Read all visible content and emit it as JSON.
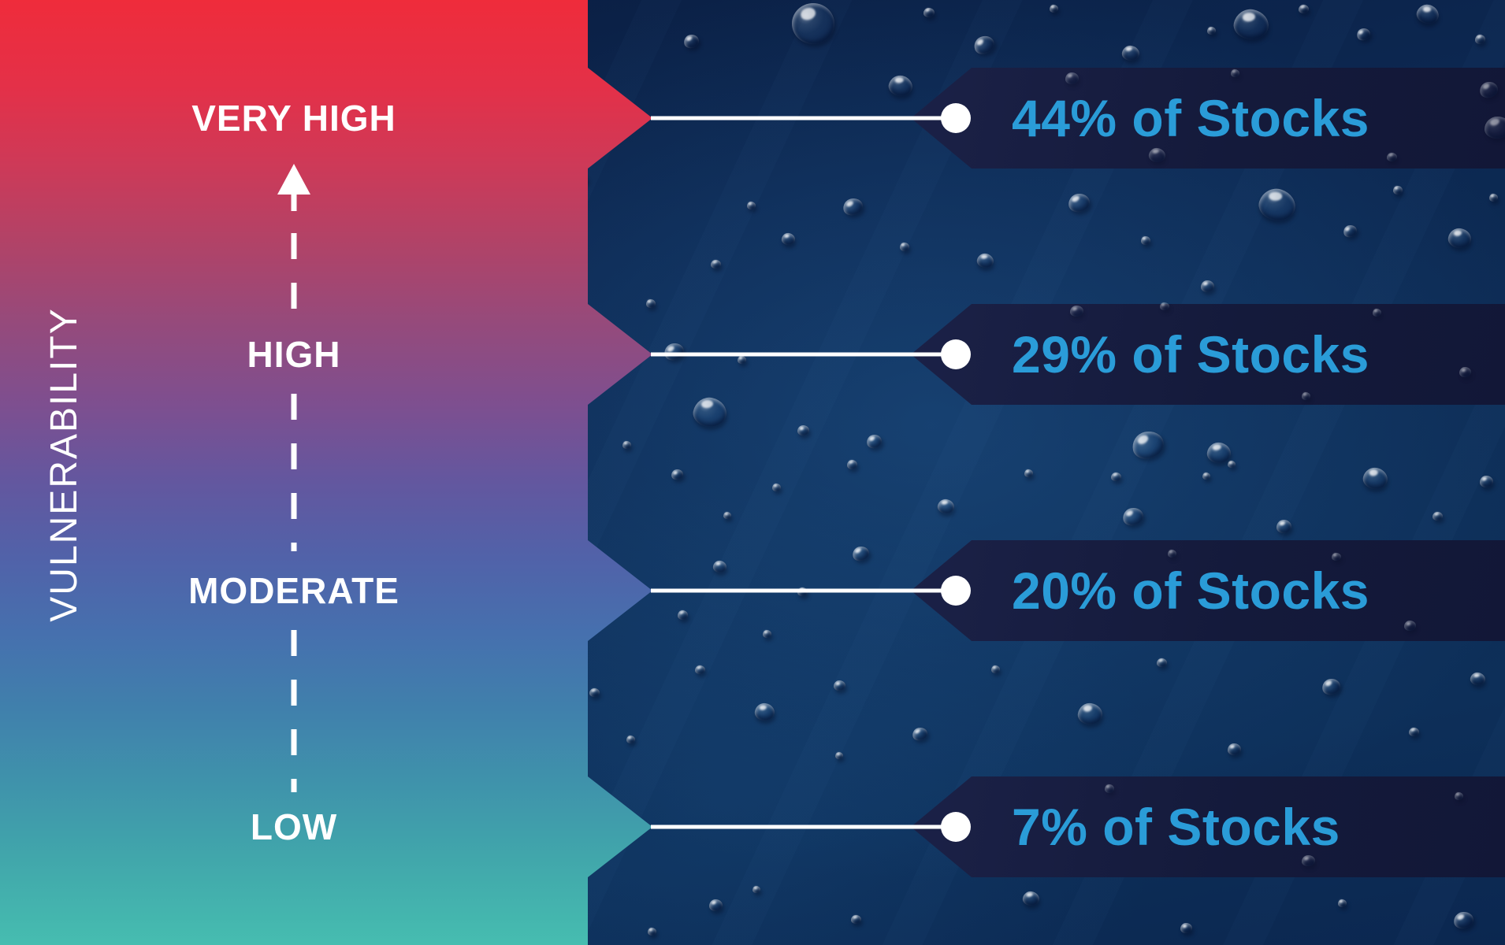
{
  "chart_data": {
    "type": "bar",
    "orientation": "horizontal-infographic-scale",
    "title": "",
    "xlabel": "",
    "ylabel": "VULNERABILITY",
    "categories": [
      "VERY HIGH",
      "HIGH",
      "MODERATE",
      "LOW"
    ],
    "values": [
      44,
      29,
      20,
      7
    ],
    "value_labels": [
      "44% of Stocks",
      "29% of Stocks",
      "20% of Stocks",
      "7% of Stocks"
    ],
    "unit": "% of Stocks",
    "axis_direction": "low at bottom, very high at top, upward arrow",
    "legend": false,
    "grid": false
  },
  "axis": {
    "title": "VULNERABILITY"
  },
  "levels": [
    {
      "label": "VERY HIGH",
      "value": "44% of Stocks"
    },
    {
      "label": "HIGH",
      "value": "29% of Stocks"
    },
    {
      "label": "MODERATE",
      "value": "20% of Stocks"
    },
    {
      "label": "LOW",
      "value": "7% of Stocks"
    }
  ],
  "colors": {
    "gradient_top_red": "#ef2c3b",
    "gradient_mid_purple": "#7d4f90",
    "gradient_mid_blue": "#4670ae",
    "gradient_bottom_teal": "#46bdb0",
    "dark_water_panel": "#0c2850",
    "banner_navy": "#161c3d",
    "value_text_blue": "#2a9cd8",
    "label_text_white": "#ffffff"
  }
}
